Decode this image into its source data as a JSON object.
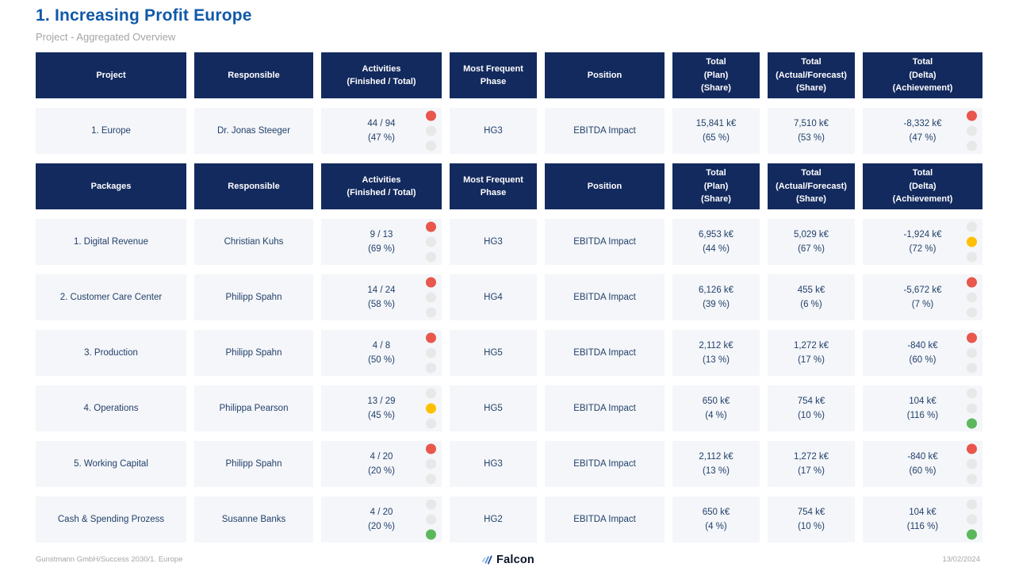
{
  "page": {
    "title": "1. Increasing Profit Europe",
    "subtitle": "Project - Aggregated Overview"
  },
  "headers": {
    "project": {
      "col1": "Project",
      "col2": "Responsible",
      "col3": "Activities\n(Finished / Total)",
      "col4": "Most Frequent\nPhase",
      "col5": "Position",
      "col6": "Total\n(Plan)\n(Share)",
      "col7": "Total\n(Actual/Forecast)\n(Share)",
      "col8": "Total\n(Delta)\n(Achievement)"
    },
    "packages": {
      "col1": "Packages",
      "col2": "Responsible",
      "col3": "Activities\n(Finished / Total)",
      "col4": "Most Frequent\nPhase",
      "col5": "Position",
      "col6": "Total\n(Plan)\n(Share)",
      "col7": "Total\n(Actual/Forecast)\n(Share)",
      "col8": "Total\n(Delta)\n(Achievement)"
    }
  },
  "project_rows": [
    {
      "name": "1. Europe",
      "responsible": "Dr. Jonas Steeger",
      "activities": "44 / 94\n(47 %)",
      "activities_status": "red",
      "phase": "HG3",
      "position": "EBITDA Impact",
      "plan": "15,841 k€\n(65 %)",
      "actual": "7,510 k€\n(53 %)",
      "delta": "-8,332 k€\n(47 %)",
      "delta_status": "red"
    }
  ],
  "package_rows": [
    {
      "name": "1. Digital Revenue",
      "responsible": "Christian Kuhs",
      "activities": "9 / 13\n(69 %)",
      "activities_status": "red",
      "phase": "HG3",
      "position": "EBITDA Impact",
      "plan": "6,953 k€\n(44 %)",
      "actual": "5,029 k€\n(67 %)",
      "delta": "-1,924 k€\n(72 %)",
      "delta_status": "yellow"
    },
    {
      "name": "2. Customer Care Center",
      "responsible": "Philipp Spahn",
      "activities": "14 / 24\n(58 %)",
      "activities_status": "red",
      "phase": "HG4",
      "position": "EBITDA Impact",
      "plan": "6,126 k€\n(39 %)",
      "actual": "455 k€\n(6 %)",
      "delta": "-5,672 k€\n(7 %)",
      "delta_status": "red"
    },
    {
      "name": "3. Production",
      "responsible": "Philipp Spahn",
      "activities": "4 / 8\n(50 %)",
      "activities_status": "red",
      "phase": "HG5",
      "position": "EBITDA Impact",
      "plan": "2,112 k€\n(13 %)",
      "actual": "1,272 k€\n(17 %)",
      "delta": "-840 k€\n(60 %)",
      "delta_status": "red"
    },
    {
      "name": "4. Operations",
      "responsible": "Philippa Pearson",
      "activities": "13 / 29\n(45 %)",
      "activities_status": "yellow",
      "phase": "HG5",
      "position": "EBITDA Impact",
      "plan": "650 k€\n(4 %)",
      "actual": "754 k€\n(10 %)",
      "delta": "104 k€\n(116 %)",
      "delta_status": "green"
    },
    {
      "name": "5. Working Capital",
      "responsible": "Philipp Spahn",
      "activities": "4 / 20\n(20 %)",
      "activities_status": "red",
      "phase": "HG3",
      "position": "EBITDA Impact",
      "plan": "2,112 k€\n(13 %)",
      "actual": "1,272 k€\n(17 %)",
      "delta": "-840 k€\n(60 %)",
      "delta_status": "red"
    },
    {
      "name": "Cash & Spending Prozess",
      "responsible": "Susanne Banks",
      "activities": "4 / 20\n(20 %)",
      "activities_status": "green",
      "phase": "HG2",
      "position": "EBITDA Impact",
      "plan": "650 k€\n(4 %)",
      "actual": "754 k€\n(10 %)",
      "delta": "104 k€\n(116 %)",
      "delta_status": "green"
    }
  ],
  "footer": {
    "left": "Gunstmann GmbH/Success 2030/1. Europe",
    "logo_text": "Falcon",
    "date": "13/02/2024"
  },
  "colors": {
    "header_navy": "#132A5E",
    "title_blue": "#1058A8",
    "status_red": "#E9564B",
    "status_yellow": "#FFC000",
    "status_green": "#5CB85C",
    "inactive_dot": "#E8E8E8"
  }
}
